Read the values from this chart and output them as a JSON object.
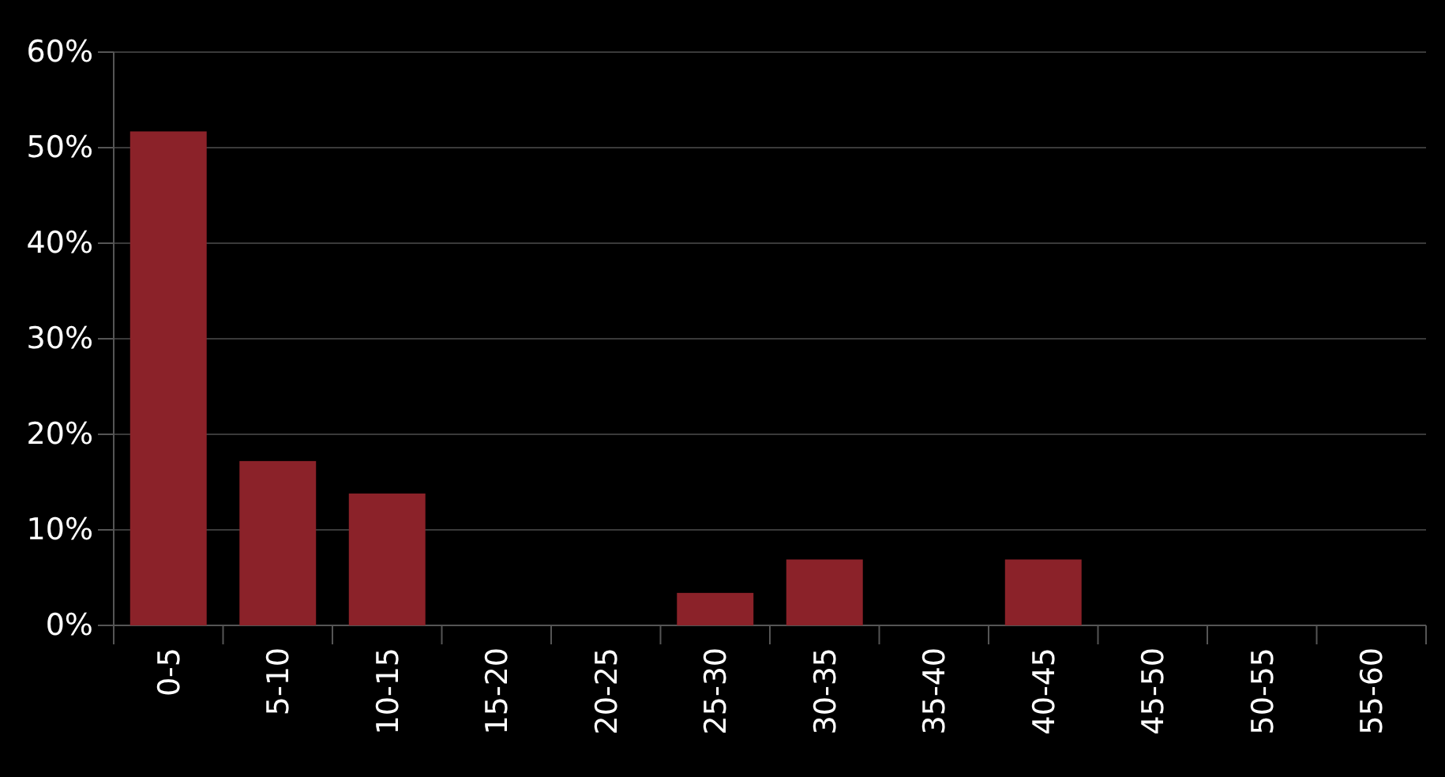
{
  "chart_data": {
    "type": "bar",
    "categories": [
      "0-5",
      "5-10",
      "10-15",
      "15-20",
      "20-25",
      "25-30",
      "30-35",
      "35-40",
      "40-45",
      "45-50",
      "50-55",
      "55-60"
    ],
    "values": [
      51.7,
      17.2,
      13.8,
      0,
      0,
      3.4,
      6.9,
      0,
      6.9,
      0,
      0,
      0
    ],
    "color": "#8b2229",
    "ylim": [
      0,
      60
    ],
    "yticks": [
      {
        "value": 0,
        "label": "0%"
      },
      {
        "value": 10,
        "label": "10%"
      },
      {
        "value": 20,
        "label": "20%"
      },
      {
        "value": 30,
        "label": "30%"
      },
      {
        "value": 40,
        "label": "40%"
      },
      {
        "value": 50,
        "label": "50%"
      },
      {
        "value": 60,
        "label": "60%"
      }
    ],
    "grid": "y"
  }
}
